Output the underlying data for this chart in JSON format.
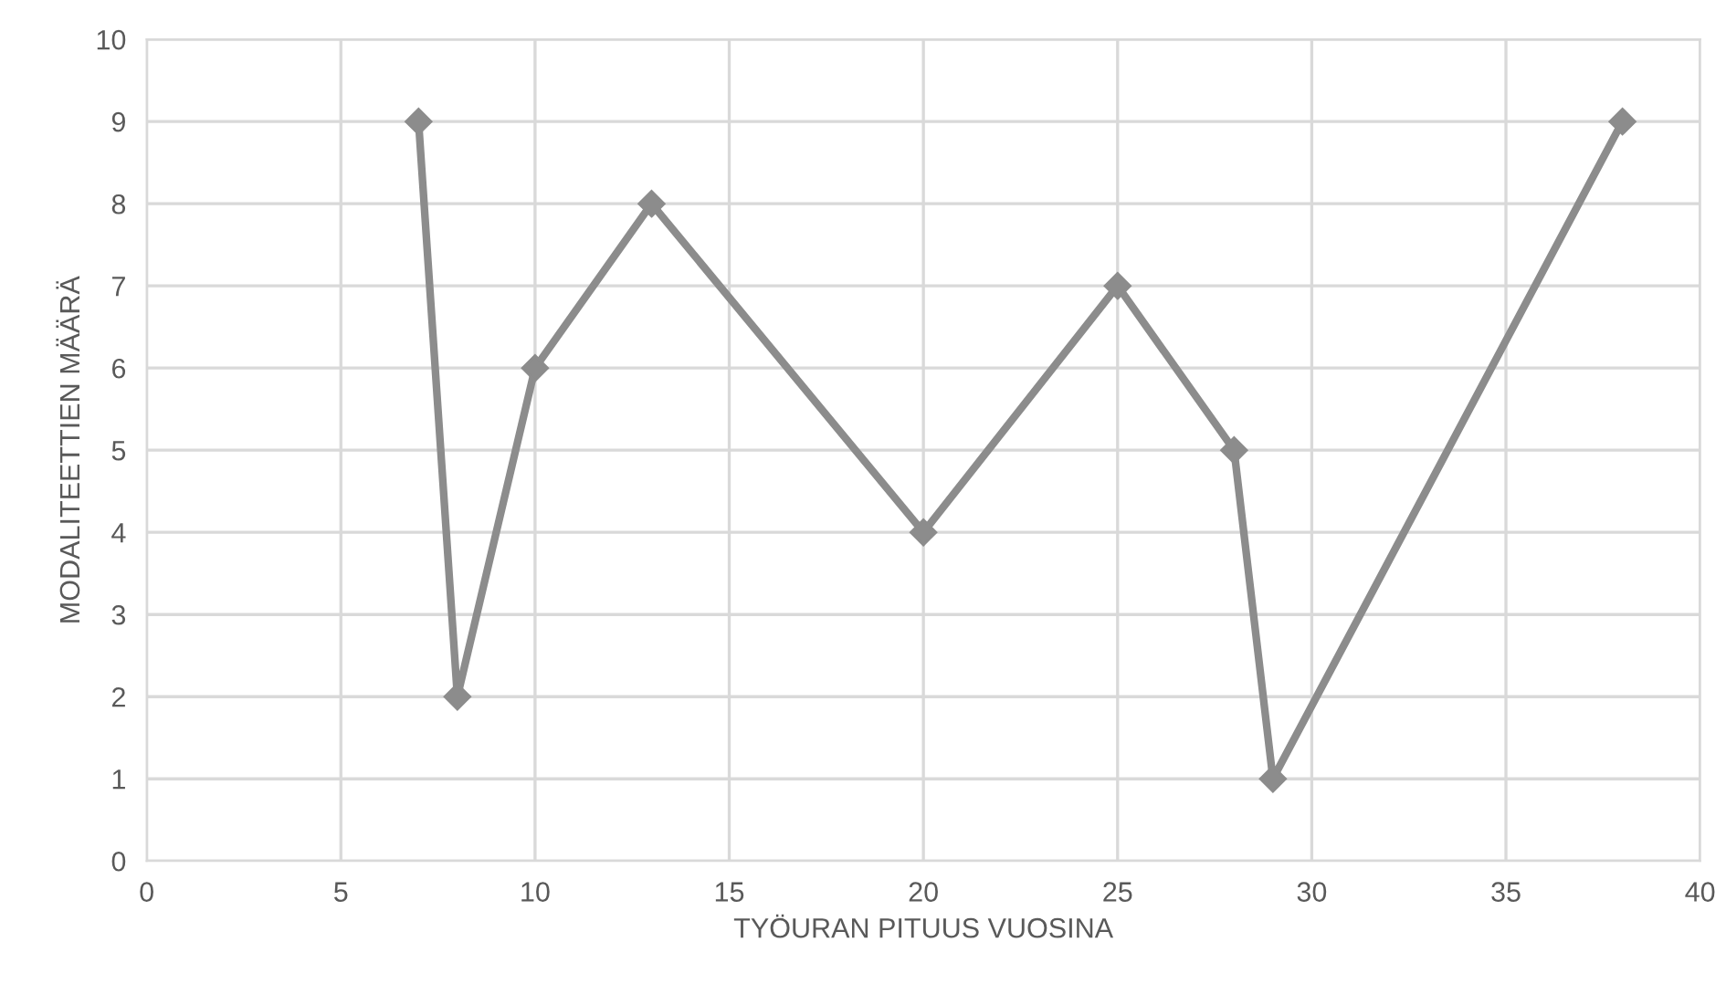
{
  "chart_data": {
    "type": "line",
    "xlabel": "TYÖURAN PITUUS VUOSINA",
    "ylabel": "MODALITEETTIEN MÄÄRÄ",
    "x": [
      7,
      8,
      10,
      13,
      20,
      25,
      28,
      29,
      38
    ],
    "series": [
      {
        "color": "#8c8c8c",
        "values": [
          9,
          2,
          6,
          8,
          4,
          7,
          5,
          1,
          9
        ]
      }
    ],
    "xlim": [
      0,
      40
    ],
    "xticks": [
      0,
      5,
      10,
      15,
      20,
      25,
      30,
      35,
      40
    ],
    "ylim": [
      0,
      10
    ],
    "yticks": [
      0,
      1,
      2,
      3,
      4,
      5,
      6,
      7,
      8,
      9,
      10
    ],
    "grid": true,
    "marker": "diamond",
    "line_style": "solid"
  }
}
